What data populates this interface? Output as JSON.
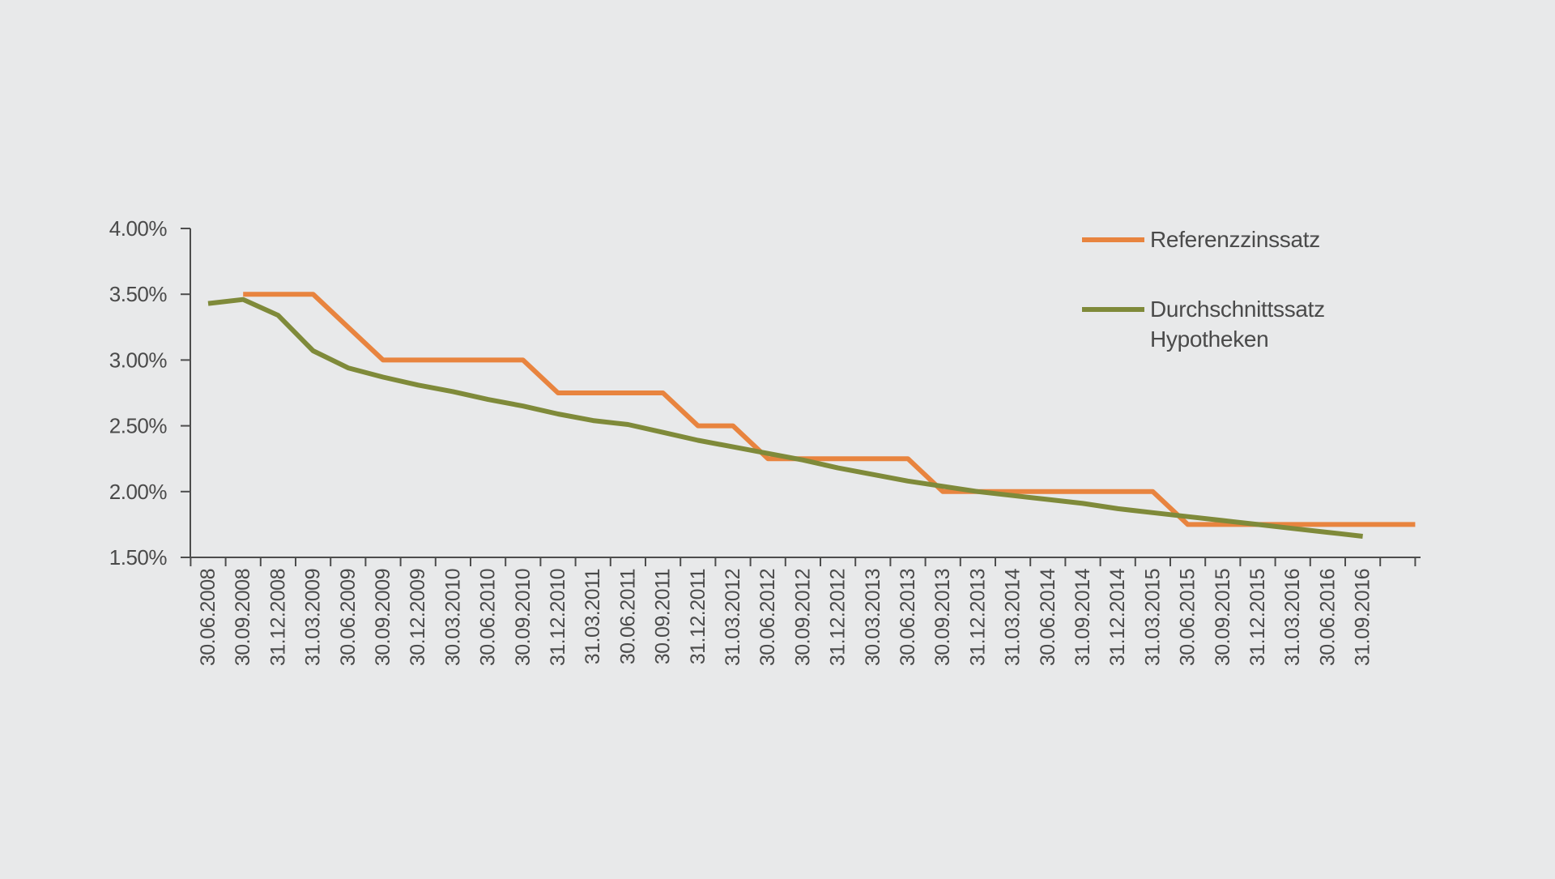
{
  "chart_data": {
    "type": "line",
    "title": "",
    "xlabel": "",
    "ylabel": "",
    "ylim": [
      1.5,
      4.0
    ],
    "y_ticks": [
      "4.00%",
      "3.50%",
      "3.00%",
      "2.50%",
      "2.00%",
      "1.50%"
    ],
    "y_tick_values": [
      4.0,
      3.5,
      3.0,
      2.5,
      2.0,
      1.5
    ],
    "grid": false,
    "legend_position": "top-right",
    "x": [
      "30.06.2008",
      "30.09.2008",
      "31.12.2008",
      "31.03.2009",
      "30.06.2009",
      "30.09.2009",
      "30.12.2009",
      "30.03.2010",
      "30.06.2010",
      "30.09.2010",
      "31.12.2010",
      "31.03.2011",
      "30.06.2011",
      "30.09.2011",
      "31.12.2011",
      "31.03.2012",
      "30.06.2012",
      "30.09.2012",
      "31.12.2012",
      "30.03.2013",
      "30.06.2013",
      "30.09.2013",
      "31.12.2013",
      "31.03.2014",
      "30.06.2014",
      "31.09.2014",
      "31.12.2014",
      "31.03.2015",
      "30.06.2015",
      "30.09.2015",
      "31.12.2015",
      "31.03.2016",
      "30.06.2016",
      "31.09.2016"
    ],
    "series": [
      {
        "name": "Referenzzinssatz",
        "color": "#e8843f",
        "style": "step",
        "steps": [
          {
            "x": 1,
            "y": 3.5
          },
          {
            "x": 3,
            "y": 3.5
          },
          {
            "x": 5,
            "y": 3.0
          },
          {
            "x": 9,
            "y": 3.0
          },
          {
            "x": 10,
            "y": 2.75
          },
          {
            "x": 13,
            "y": 2.75
          },
          {
            "x": 14,
            "y": 2.5
          },
          {
            "x": 15,
            "y": 2.5
          },
          {
            "x": 16,
            "y": 2.25
          },
          {
            "x": 20,
            "y": 2.25
          },
          {
            "x": 21,
            "y": 2.0
          },
          {
            "x": 27,
            "y": 2.0
          },
          {
            "x": 28,
            "y": 1.75
          },
          {
            "x": 34.5,
            "y": 1.75
          }
        ]
      },
      {
        "name": "Durchschnittssatz Hypotheken",
        "color": "#7f8a3a",
        "style": "line",
        "values": [
          3.43,
          3.46,
          3.34,
          3.07,
          2.94,
          2.87,
          2.81,
          2.76,
          2.7,
          2.65,
          2.59,
          2.54,
          2.51,
          2.45,
          2.39,
          2.34,
          2.29,
          2.24,
          2.18,
          2.13,
          2.08,
          2.04,
          2.0,
          1.97,
          1.94,
          1.91,
          1.87,
          1.84,
          1.81,
          1.78,
          1.75,
          1.72,
          1.69,
          1.66
        ]
      }
    ],
    "legend": [
      {
        "lines": [
          "Referenzzinssatz"
        ],
        "color": "#e8843f"
      },
      {
        "lines": [
          "Durchschnittssatz",
          "Hypotheken"
        ],
        "color": "#7f8a3a"
      }
    ]
  }
}
